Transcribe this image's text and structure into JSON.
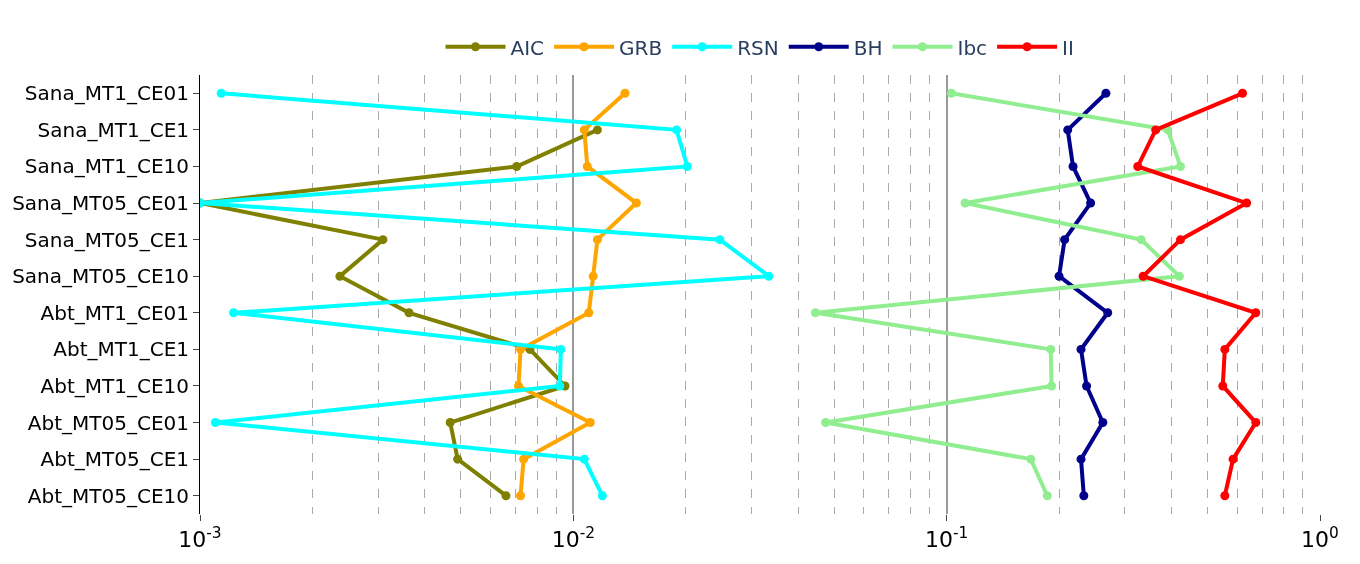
{
  "chart_data": {
    "type": "line",
    "orientation": "horizontal",
    "categories": [
      "Sana_MT1_CE01",
      "Sana_MT1_CE1",
      "Sana_MT1_CE10",
      "Sana_MT05_CE01",
      "Sana_MT05_CE1",
      "Sana_MT05_CE10",
      "Abt_MT1_CE01",
      "Abt_MT1_CE1",
      "Abt_MT1_CE10",
      "Abt_MT05_CE01",
      "Abt_MT05_CE1",
      "Abt_MT05_CE10"
    ],
    "series": [
      {
        "name": "AIC",
        "color": "#808000",
        "values": [
          null,
          0.0116,
          0.00705,
          0.001,
          0.00309,
          0.00237,
          0.00363,
          0.00765,
          0.0095,
          0.00468,
          0.0049,
          0.0066
        ]
      },
      {
        "name": "GRB",
        "color": "#ffa500",
        "values": [
          0.01375,
          0.0107,
          0.0109,
          0.01475,
          0.0116,
          0.0113,
          0.011,
          0.00722,
          0.00713,
          0.0111,
          0.00736,
          0.00722
        ]
      },
      {
        "name": "RSN",
        "color": "#00ffff",
        "values": [
          0.00114,
          0.0189,
          0.0202,
          0.001,
          0.0247,
          0.0334,
          0.00123,
          0.00926,
          0.0092,
          0.0011,
          0.0107,
          0.01196
        ]
      },
      {
        "name": "BH",
        "color": "#00008b",
        "values": [
          0.267,
          0.211,
          0.218,
          0.243,
          0.207,
          0.2,
          0.27,
          0.229,
          0.237,
          0.262,
          0.229,
          0.233
        ]
      },
      {
        "name": "Ibc",
        "color": "#90ee90",
        "values": [
          0.103,
          0.391,
          0.423,
          0.112,
          0.332,
          0.42,
          0.0445,
          0.19,
          0.191,
          0.0474,
          0.168,
          0.186
        ]
      },
      {
        "name": "II",
        "color": "#ff0000",
        "values": [
          0.62,
          0.363,
          0.325,
          0.636,
          0.423,
          0.336,
          0.673,
          0.556,
          0.549,
          0.673,
          0.585,
          0.556
        ]
      }
    ],
    "log": "x",
    "xlim": [
      0.001,
      1
    ],
    "xticks": [
      {
        "value": 0.001,
        "label": "10$^{-3}$"
      },
      {
        "value": 0.01,
        "label": "10$^{-2}$"
      },
      {
        "value": 0.1,
        "label": "10$^{-1}$"
      },
      {
        "value": 1,
        "label": "10$^{0}$"
      }
    ],
    "grid": "x",
    "legend": "top",
    "marker": "circle",
    "line_style": "solid"
  }
}
